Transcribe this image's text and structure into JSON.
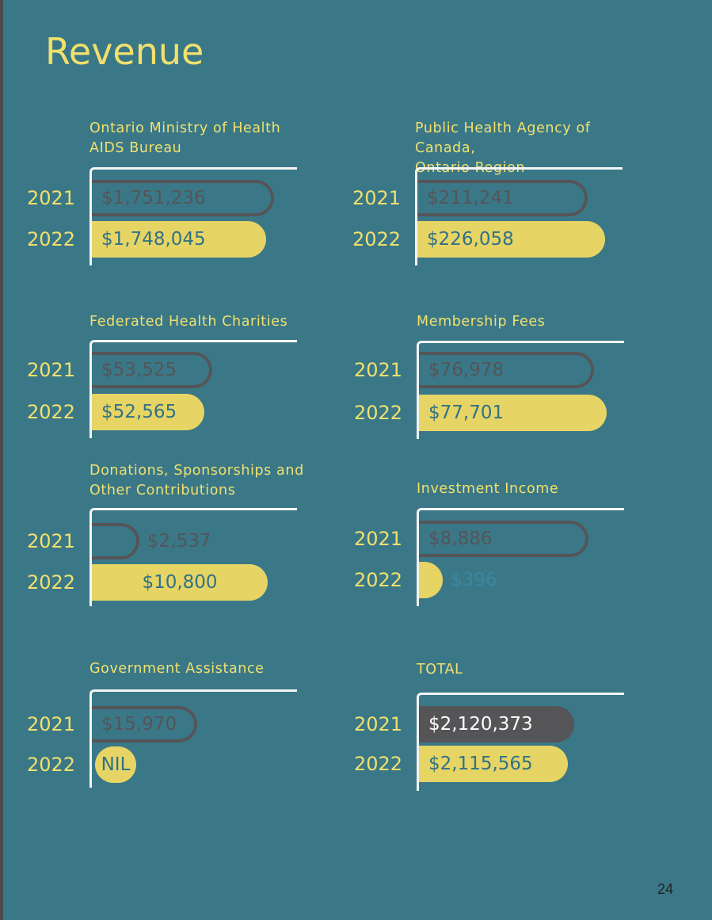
{
  "page": {
    "title": "Revenue",
    "page_number": "24"
  },
  "colors": {
    "background": "#3a7888",
    "accent_yellow": "#e6d465",
    "title_yellow": "#f2e06c",
    "bar_grey": "#555558",
    "bracket": "#f4f4f4",
    "label_teal": "#2f7286"
  },
  "chart_data": [
    {
      "type": "bar",
      "title": "Ontario Ministry of Health\nAIDS Bureau",
      "categories": [
        "2021",
        "2022"
      ],
      "values": [
        1751236,
        1748045
      ],
      "labels": [
        "$1,751,236",
        "$1,748,045"
      ]
    },
    {
      "type": "bar",
      "title": "Public Health Agency of Canada,\nOntario Region",
      "categories": [
        "2021",
        "2022"
      ],
      "values": [
        211241,
        226058
      ],
      "labels": [
        "$211,241",
        "$226,058"
      ]
    },
    {
      "type": "bar",
      "title": "Federated Health Charities",
      "categories": [
        "2021",
        "2022"
      ],
      "values": [
        53525,
        52565
      ],
      "labels": [
        "$53,525",
        "$52,565"
      ]
    },
    {
      "type": "bar",
      "title": "Membership Fees",
      "categories": [
        "2021",
        "2022"
      ],
      "values": [
        76978,
        77701
      ],
      "labels": [
        "$76,978",
        "$77,701"
      ]
    },
    {
      "type": "bar",
      "title": "Donations, Sponsorships and\nOther Contributions",
      "categories": [
        "2021",
        "2022"
      ],
      "values": [
        2537,
        10800
      ],
      "labels": [
        "$2,537",
        "$10,800"
      ]
    },
    {
      "type": "bar",
      "title": "Investment Income",
      "categories": [
        "2021",
        "2022"
      ],
      "values": [
        8886,
        396
      ],
      "labels": [
        "$8,886",
        "$396"
      ]
    },
    {
      "type": "bar",
      "title": "Government Assistance",
      "categories": [
        "2021",
        "2022"
      ],
      "values": [
        15970,
        0
      ],
      "labels": [
        "$15,970",
        "NIL"
      ]
    },
    {
      "type": "bar",
      "title": "TOTAL",
      "categories": [
        "2021",
        "2022"
      ],
      "values": [
        2120373,
        2115565
      ],
      "labels": [
        "$2,120,373",
        "$2,115,565"
      ]
    }
  ]
}
